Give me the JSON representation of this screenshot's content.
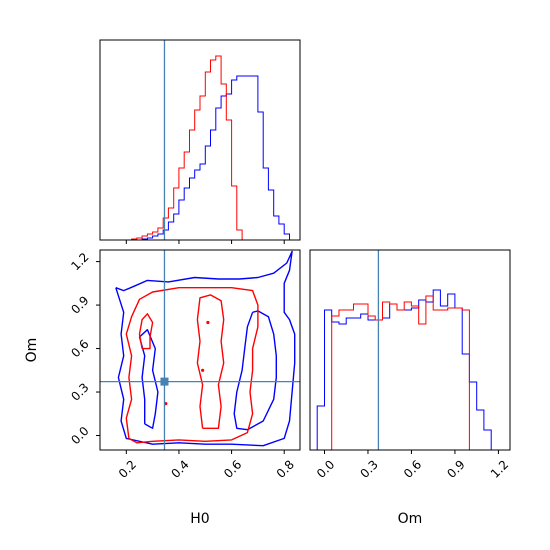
{
  "chart_data": {
    "type": "corner-plot",
    "parameters": [
      "H0",
      "Om"
    ],
    "truth": {
      "H0": 0.345,
      "Om": 0.372
    },
    "colors": {
      "red": "#ff0000",
      "blue": "#0000ff",
      "truth": "#4682b4"
    },
    "axes": {
      "H0": {
        "lim": [
          0.1,
          0.86
        ],
        "ticks": [
          "0.2",
          "0.4",
          "0.6",
          "0.8"
        ],
        "label": "H0"
      },
      "Om": {
        "lim": [
          -0.1,
          1.28
        ],
        "ticks": [
          "0.0",
          "0.3",
          "0.6",
          "0.9",
          "1.2"
        ],
        "label": "Om"
      },
      "Om_hist": {
        "lim": [
          -0.1,
          1.28
        ],
        "ticks": [
          "0.0",
          "0.3",
          "0.6",
          "0.9",
          "1.2"
        ],
        "label": "Om"
      }
    },
    "hist_H0": {
      "bin_edges": [
        0.18,
        0.2,
        0.22,
        0.24,
        0.26,
        0.28,
        0.3,
        0.32,
        0.34,
        0.36,
        0.38,
        0.4,
        0.42,
        0.44,
        0.46,
        0.48,
        0.5,
        0.52,
        0.54,
        0.56,
        0.58,
        0.6,
        0.62,
        0.64,
        0.66,
        0.68,
        0.7,
        0.72,
        0.74,
        0.76,
        0.78,
        0.8,
        0.82,
        0.84
      ],
      "red": [
        0,
        0,
        0.5,
        1,
        2,
        3,
        4,
        6,
        11,
        16,
        26,
        36,
        44,
        55,
        65,
        72,
        84,
        90,
        92,
        78,
        60,
        27,
        5,
        0,
        0,
        0,
        0,
        0,
        0,
        0,
        0,
        0,
        0
      ],
      "blue": [
        0,
        0,
        0,
        0,
        0.5,
        1,
        2,
        3,
        5,
        9,
        13,
        20,
        26,
        31,
        35,
        38,
        47,
        55,
        66,
        72,
        73,
        80,
        82,
        82,
        82,
        82,
        64,
        36,
        25,
        12,
        8,
        3,
        0
      ],
      "ylim": [
        0,
        100
      ]
    },
    "hist_Om": {
      "bin_edges": [
        -0.05,
        0.0,
        0.05,
        0.1,
        0.15,
        0.2,
        0.25,
        0.3,
        0.35,
        0.4,
        0.45,
        0.5,
        0.55,
        0.6,
        0.65,
        0.7,
        0.75,
        0.8,
        0.85,
        0.9,
        0.95,
        1.0,
        1.05,
        1.1,
        1.15,
        1.2,
        1.25
      ],
      "red": [
        0,
        0,
        67,
        70,
        70,
        73,
        73,
        67,
        65,
        74,
        73,
        70,
        74,
        72,
        63,
        77,
        70,
        70,
        71,
        71,
        70,
        0,
        0,
        0,
        0,
        0
      ],
      "blue": [
        22,
        70,
        64,
        63,
        66,
        66,
        68,
        65,
        65,
        66,
        73,
        70,
        70,
        71,
        75,
        74,
        80,
        72,
        78,
        71,
        48,
        34,
        20,
        10,
        0,
        0
      ],
      "ylim": [
        0,
        100
      ]
    },
    "contours_2d": {
      "red_outer": [
        [
          0.21,
          -0.02
        ],
        [
          0.2,
          0.12
        ],
        [
          0.22,
          0.25
        ],
        [
          0.21,
          0.4
        ],
        [
          0.22,
          0.55
        ],
        [
          0.2,
          0.7
        ],
        [
          0.22,
          0.82
        ],
        [
          0.25,
          0.94
        ],
        [
          0.3,
          0.99
        ],
        [
          0.4,
          1.02
        ],
        [
          0.5,
          1.02
        ],
        [
          0.6,
          1.02
        ],
        [
          0.68,
          1.0
        ],
        [
          0.7,
          0.9
        ],
        [
          0.7,
          0.75
        ],
        [
          0.68,
          0.6
        ],
        [
          0.68,
          0.45
        ],
        [
          0.67,
          0.3
        ],
        [
          0.68,
          0.15
        ],
        [
          0.66,
          0.02
        ],
        [
          0.6,
          -0.03
        ],
        [
          0.5,
          -0.04
        ],
        [
          0.4,
          -0.03
        ],
        [
          0.3,
          -0.04
        ],
        [
          0.24,
          -0.05
        ],
        [
          0.21,
          -0.02
        ]
      ],
      "red_inner_a": [
        [
          0.26,
          0.6
        ],
        [
          0.25,
          0.7
        ],
        [
          0.26,
          0.8
        ],
        [
          0.28,
          0.84
        ],
        [
          0.3,
          0.78
        ],
        [
          0.29,
          0.68
        ],
        [
          0.29,
          0.6
        ],
        [
          0.26,
          0.6
        ]
      ],
      "red_inner_b": [
        [
          0.49,
          0.05
        ],
        [
          0.48,
          0.2
        ],
        [
          0.49,
          0.35
        ],
        [
          0.47,
          0.5
        ],
        [
          0.48,
          0.65
        ],
        [
          0.47,
          0.8
        ],
        [
          0.48,
          0.95
        ],
        [
          0.52,
          0.97
        ],
        [
          0.56,
          0.93
        ],
        [
          0.57,
          0.8
        ],
        [
          0.56,
          0.65
        ],
        [
          0.57,
          0.5
        ],
        [
          0.55,
          0.35
        ],
        [
          0.56,
          0.2
        ],
        [
          0.55,
          0.05
        ],
        [
          0.49,
          0.05
        ]
      ],
      "blue_outer": [
        [
          0.16,
          1.02
        ],
        [
          0.19,
          1.0
        ],
        [
          0.23,
          1.03
        ],
        [
          0.28,
          1.07
        ],
        [
          0.36,
          1.06
        ],
        [
          0.46,
          1.09
        ],
        [
          0.55,
          1.08
        ],
        [
          0.63,
          1.08
        ],
        [
          0.7,
          1.09
        ],
        [
          0.76,
          1.12
        ],
        [
          0.81,
          1.19
        ],
        [
          0.83,
          1.27
        ],
        [
          0.82,
          1.14
        ],
        [
          0.8,
          1.05
        ],
        [
          0.8,
          0.95
        ],
        [
          0.8,
          0.85
        ],
        [
          0.82,
          0.8
        ],
        [
          0.84,
          0.7
        ],
        [
          0.84,
          0.5
        ],
        [
          0.83,
          0.3
        ],
        [
          0.82,
          0.1
        ],
        [
          0.8,
          -0.02
        ],
        [
          0.72,
          -0.07
        ],
        [
          0.6,
          -0.06
        ],
        [
          0.5,
          -0.06
        ],
        [
          0.4,
          -0.05
        ],
        [
          0.3,
          -0.06
        ],
        [
          0.2,
          -0.02
        ],
        [
          0.18,
          0.1
        ],
        [
          0.19,
          0.25
        ],
        [
          0.17,
          0.4
        ],
        [
          0.19,
          0.55
        ],
        [
          0.18,
          0.7
        ],
        [
          0.19,
          0.85
        ],
        [
          0.16,
          1.02
        ]
      ],
      "blue_inner": [
        [
          0.68,
          0.85
        ],
        [
          0.66,
          0.75
        ],
        [
          0.65,
          0.6
        ],
        [
          0.64,
          0.45
        ],
        [
          0.62,
          0.3
        ],
        [
          0.61,
          0.15
        ],
        [
          0.62,
          0.05
        ],
        [
          0.66,
          0.04
        ],
        [
          0.72,
          0.1
        ],
        [
          0.76,
          0.25
        ],
        [
          0.77,
          0.4
        ],
        [
          0.77,
          0.55
        ],
        [
          0.76,
          0.7
        ],
        [
          0.74,
          0.82
        ],
        [
          0.7,
          0.86
        ],
        [
          0.68,
          0.85
        ]
      ],
      "blue_inner_b": [
        [
          0.27,
          0.08
        ],
        [
          0.27,
          0.25
        ],
        [
          0.26,
          0.4
        ],
        [
          0.27,
          0.55
        ],
        [
          0.25,
          0.68
        ],
        [
          0.28,
          0.73
        ],
        [
          0.31,
          0.6
        ],
        [
          0.3,
          0.45
        ],
        [
          0.32,
          0.3
        ],
        [
          0.31,
          0.15
        ],
        [
          0.3,
          0.05
        ],
        [
          0.27,
          0.08
        ]
      ]
    },
    "dots_2d": {
      "red": [
        [
          0.35,
          0.22
        ],
        [
          0.49,
          0.45
        ],
        [
          0.51,
          0.78
        ]
      ],
      "blue": []
    }
  }
}
